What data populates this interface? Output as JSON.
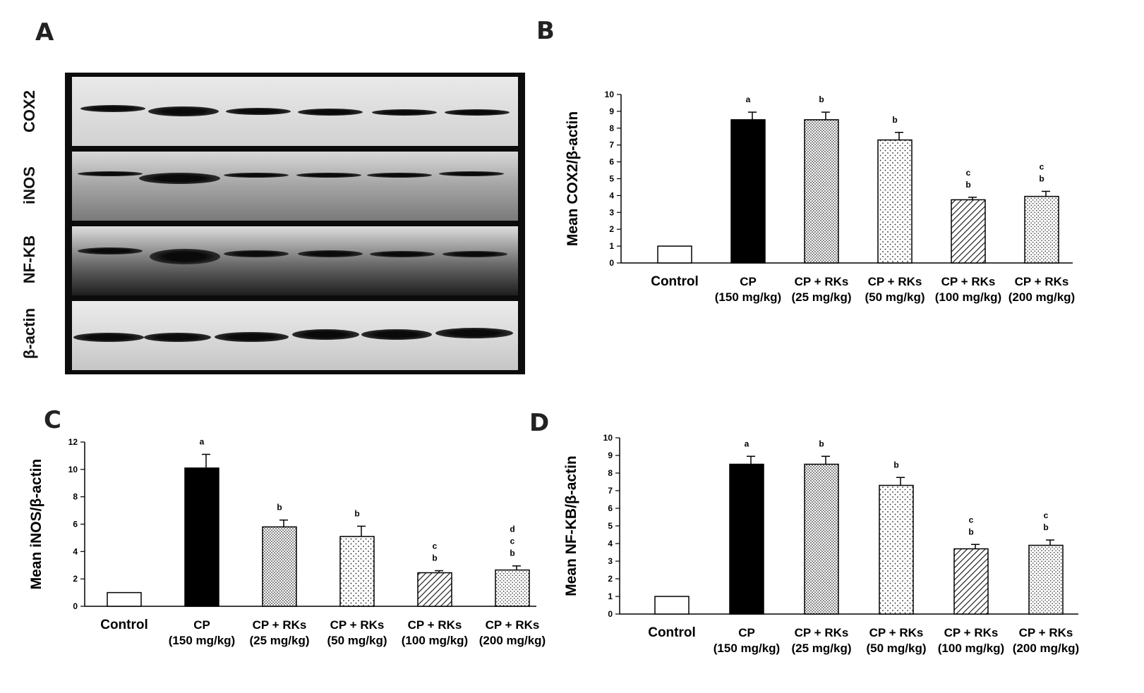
{
  "panels": {
    "a": "A",
    "b": "B",
    "c": "C",
    "d": "D"
  },
  "blot": {
    "labels": [
      "COX2",
      "iNOS",
      "NF-KB",
      "β-actin"
    ]
  },
  "chart_data": [
    {
      "id": "B",
      "type": "bar",
      "ylabel": "Mean COX2/β-actin",
      "ylim": [
        0,
        10
      ],
      "yticks": [
        0,
        1,
        2,
        3,
        4,
        5,
        6,
        7,
        8,
        9,
        10
      ],
      "categories": [
        [
          "Control"
        ],
        [
          "CP",
          "(150 mg/kg)"
        ],
        [
          "CP + RKs",
          "(25 mg/kg)"
        ],
        [
          "CP + RKs",
          "(50 mg/kg)"
        ],
        [
          "CP + RKs",
          "(100 mg/kg)"
        ],
        [
          "CP + RKs",
          "(200 mg/kg)"
        ]
      ],
      "values": [
        1.0,
        8.5,
        8.5,
        7.3,
        3.75,
        3.95
      ],
      "errors": [
        0.0,
        0.45,
        0.45,
        0.45,
        0.15,
        0.3
      ],
      "fills": [
        "white",
        "black",
        "dense-dots",
        "sparse-dots",
        "hatch",
        "fine-dots"
      ],
      "annotations": [
        [],
        [
          "a"
        ],
        [
          "b"
        ],
        [
          "b"
        ],
        [
          "b",
          "c"
        ],
        [
          "b",
          "c"
        ]
      ]
    },
    {
      "id": "C",
      "type": "bar",
      "ylabel": "Mean iNOS/β-actin",
      "ylim": [
        0,
        12
      ],
      "yticks": [
        0,
        2,
        4,
        6,
        8,
        10,
        12
      ],
      "categories": [
        [
          "Control"
        ],
        [
          "CP",
          "(150 mg/kg)"
        ],
        [
          "CP + RKs",
          "(25 mg/kg)"
        ],
        [
          "CP + RKs",
          "(50 mg/kg)"
        ],
        [
          "CP + RKs",
          "(100 mg/kg)"
        ],
        [
          "CP + RKs",
          "(200 mg/kg)"
        ]
      ],
      "values": [
        1.0,
        10.1,
        5.8,
        5.1,
        2.45,
        2.65
      ],
      "errors": [
        0.0,
        1.0,
        0.5,
        0.75,
        0.15,
        0.3
      ],
      "fills": [
        "white",
        "black",
        "dense-dots",
        "sparse-dots",
        "hatch",
        "fine-dots"
      ],
      "annotations": [
        [],
        [
          "a"
        ],
        [
          "b"
        ],
        [
          "b"
        ],
        [
          "b",
          "c"
        ],
        [
          "b",
          "c",
          "d"
        ]
      ]
    },
    {
      "id": "D",
      "type": "bar",
      "ylabel": "Mean NF-KB/β-actin",
      "ylim": [
        0,
        10
      ],
      "yticks": [
        0,
        1,
        2,
        3,
        4,
        5,
        6,
        7,
        8,
        9,
        10
      ],
      "categories": [
        [
          "Control"
        ],
        [
          "CP",
          "(150 mg/kg)"
        ],
        [
          "CP + RKs",
          "(25 mg/kg)"
        ],
        [
          "CP + RKs",
          "(50 mg/kg)"
        ],
        [
          "CP + RKs",
          "(100 mg/kg)"
        ],
        [
          "CP + RKs",
          "(200 mg/kg)"
        ]
      ],
      "values": [
        1.0,
        8.5,
        8.5,
        7.3,
        3.7,
        3.9
      ],
      "errors": [
        0.0,
        0.45,
        0.45,
        0.45,
        0.25,
        0.3
      ],
      "fills": [
        "white",
        "black",
        "dense-dots",
        "sparse-dots",
        "hatch",
        "fine-dots"
      ],
      "annotations": [
        [],
        [
          "a"
        ],
        [
          "b"
        ],
        [
          "b"
        ],
        [
          "b",
          "c"
        ],
        [
          "b",
          "c"
        ]
      ]
    }
  ]
}
